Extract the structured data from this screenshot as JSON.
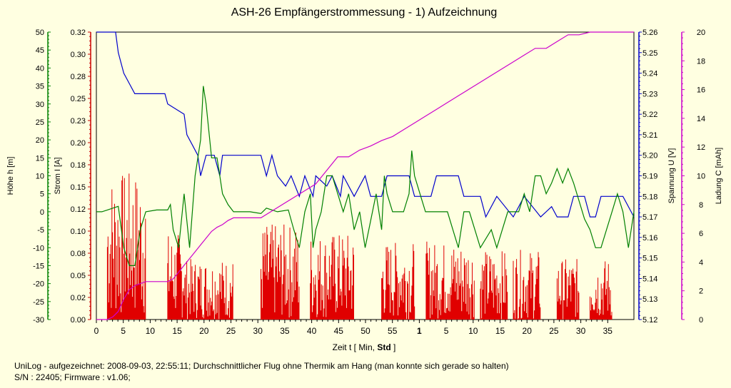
{
  "chart_data": {
    "type": "line",
    "title": "ASH-26 Empfängerstrommessung - 1) Aufzeichnung",
    "xlabel": {
      "prefix": "Zeit  t  [ Min, ",
      "bold": "Std",
      "suffix": " ]"
    },
    "x_ticks": [
      "0",
      "5",
      "10",
      "15",
      "20",
      "25",
      "30",
      "35",
      "40",
      "45",
      "50",
      "55",
      "1",
      "5",
      "10",
      "15",
      "20",
      "25",
      "30",
      "35"
    ],
    "x_tick_bold": "1",
    "xlim": [
      0,
      98
    ],
    "axes": {
      "hoehe": {
        "label": "Höhe  h  [m]",
        "ticks": [
          "50",
          "45",
          "40",
          "35",
          "30",
          "25",
          "20",
          "15",
          "10",
          "5",
          "0",
          "-5",
          "-10",
          "-15",
          "-20",
          "-25",
          "-30"
        ],
        "range": [
          -30,
          50
        ],
        "color": "#008000"
      },
      "strom": {
        "label": "Strom  I  [A]",
        "ticks": [
          "0.32",
          "0.30",
          "0.28",
          "0.25",
          "0.23",
          "0.20",
          "0.18",
          "0.15",
          "0.12",
          "0.10",
          "0.08",
          "0.05",
          "0.02",
          "0.00"
        ],
        "range": [
          0,
          0.33
        ],
        "color": "#cc0000"
      },
      "spannung": {
        "label": "Spannung  U  [V]",
        "ticks": [
          "5.26",
          "5.25",
          "5.24",
          "5.23",
          "5.22",
          "5.21",
          "5.20",
          "5.19",
          "5.18",
          "5.17",
          "5.16",
          "5.15",
          "5.14",
          "5.13",
          "5.12"
        ],
        "range": [
          5.12,
          5.26
        ],
        "color": "#0000cc"
      },
      "ladung": {
        "label": "Ladung  C  [mAh]",
        "ticks": [
          "20",
          "18",
          "16",
          "14",
          "12",
          "10",
          "8",
          "6",
          "4",
          "2",
          "0"
        ],
        "range": [
          0,
          21.2
        ],
        "color": "#cc00cc"
      }
    },
    "series": [
      {
        "axis": "spannung",
        "color": "#0000cc",
        "points": [
          [
            0,
            5.26
          ],
          [
            3.5,
            5.26
          ],
          [
            4,
            5.25
          ],
          [
            5,
            5.24
          ],
          [
            6,
            5.235
          ],
          [
            7,
            5.23
          ],
          [
            11,
            5.23
          ],
          [
            12.5,
            5.23
          ],
          [
            13,
            5.225
          ],
          [
            16,
            5.22
          ],
          [
            16.5,
            5.21
          ],
          [
            17.5,
            5.205
          ],
          [
            18.5,
            5.2
          ],
          [
            19,
            5.19
          ],
          [
            20,
            5.2
          ],
          [
            21.5,
            5.2
          ],
          [
            22.5,
            5.19
          ],
          [
            23,
            5.2
          ],
          [
            24,
            5.2
          ],
          [
            30,
            5.2
          ],
          [
            31,
            5.19
          ],
          [
            32,
            5.2
          ],
          [
            33,
            5.19
          ],
          [
            34.5,
            5.185
          ],
          [
            35.5,
            5.19
          ],
          [
            37,
            5.18
          ],
          [
            38,
            5.19
          ],
          [
            39.5,
            5.18
          ],
          [
            40,
            5.19
          ],
          [
            42,
            5.185
          ],
          [
            43,
            5.19
          ],
          [
            44.5,
            5.18
          ],
          [
            45,
            5.19
          ],
          [
            47,
            5.18
          ],
          [
            49,
            5.19
          ],
          [
            50,
            5.18
          ],
          [
            52,
            5.18
          ],
          [
            53,
            5.19
          ],
          [
            57,
            5.19
          ],
          [
            58,
            5.18
          ],
          [
            61,
            5.18
          ],
          [
            62,
            5.19
          ],
          [
            66,
            5.19
          ],
          [
            67,
            5.18
          ],
          [
            70,
            5.18
          ],
          [
            71,
            5.17
          ],
          [
            73,
            5.18
          ],
          [
            76,
            5.17
          ],
          [
            78,
            5.18
          ],
          [
            81,
            5.17
          ],
          [
            83,
            5.175
          ],
          [
            84,
            5.17
          ],
          [
            86,
            5.17
          ],
          [
            87,
            5.18
          ],
          [
            89,
            5.18
          ],
          [
            90,
            5.17
          ],
          [
            91,
            5.17
          ],
          [
            92,
            5.18
          ],
          [
            96,
            5.18
          ],
          [
            98,
            5.17
          ]
        ]
      },
      {
        "axis": "hoehe",
        "color": "#008000",
        "points": [
          [
            0,
            0
          ],
          [
            1,
            0
          ],
          [
            2,
            0.5
          ],
          [
            3,
            1
          ],
          [
            4,
            1.5
          ],
          [
            5,
            -10
          ],
          [
            6,
            -15
          ],
          [
            7,
            -15
          ],
          [
            8,
            -5
          ],
          [
            9,
            0
          ],
          [
            11,
            0.5
          ],
          [
            13,
            0.5
          ],
          [
            13.5,
            2
          ],
          [
            14,
            -5
          ],
          [
            15,
            -10
          ],
          [
            16,
            5
          ],
          [
            17,
            -10
          ],
          [
            18,
            10
          ],
          [
            19,
            20
          ],
          [
            19.5,
            35
          ],
          [
            20,
            30
          ],
          [
            21,
            15
          ],
          [
            22,
            15
          ],
          [
            22.5,
            10
          ],
          [
            23,
            5
          ],
          [
            24,
            2
          ],
          [
            25,
            0
          ],
          [
            28,
            0
          ],
          [
            30,
            -0.5
          ],
          [
            31,
            1
          ],
          [
            33,
            0
          ],
          [
            35,
            0.5
          ],
          [
            36,
            -5
          ],
          [
            37,
            -10
          ],
          [
            38,
            0
          ],
          [
            39,
            5
          ],
          [
            39.5,
            -10
          ],
          [
            40,
            -5
          ],
          [
            41,
            0
          ],
          [
            42,
            10
          ],
          [
            43,
            10
          ],
          [
            44,
            5
          ],
          [
            45,
            0
          ],
          [
            46,
            5
          ],
          [
            47,
            -5
          ],
          [
            48,
            0
          ],
          [
            49,
            -10
          ],
          [
            51,
            5
          ],
          [
            52,
            -5
          ],
          [
            52.5,
            10
          ],
          [
            53,
            5
          ],
          [
            54,
            0
          ],
          [
            55,
            0
          ],
          [
            56,
            0
          ],
          [
            57,
            5
          ],
          [
            57.5,
            17
          ],
          [
            58,
            10
          ],
          [
            59,
            5
          ],
          [
            60,
            0
          ],
          [
            62,
            0
          ],
          [
            63,
            0
          ],
          [
            64,
            0
          ],
          [
            65,
            -5
          ],
          [
            66,
            -10
          ],
          [
            67,
            0
          ],
          [
            68,
            0
          ],
          [
            69,
            -5
          ],
          [
            70,
            -10
          ],
          [
            72,
            -5
          ],
          [
            73,
            -10
          ],
          [
            74,
            -5
          ],
          [
            75,
            0
          ],
          [
            77,
            0
          ],
          [
            78,
            5
          ],
          [
            79,
            0
          ],
          [
            80,
            10
          ],
          [
            81,
            10
          ],
          [
            82,
            5
          ],
          [
            83,
            8
          ],
          [
            84,
            12
          ],
          [
            85,
            8
          ],
          [
            86,
            12
          ],
          [
            87,
            8
          ],
          [
            88,
            3
          ],
          [
            89,
            -2
          ],
          [
            90,
            -5
          ],
          [
            91,
            -10
          ],
          [
            92,
            -10
          ],
          [
            93,
            -5
          ],
          [
            94,
            0
          ],
          [
            95,
            5
          ],
          [
            96,
            0
          ],
          [
            97,
            -10
          ],
          [
            98,
            0
          ]
        ]
      },
      {
        "axis": "ladung",
        "color": "#cc00cc",
        "points": [
          [
            0,
            0
          ],
          [
            2,
            0
          ],
          [
            3,
            0.2
          ],
          [
            4,
            0.6
          ],
          [
            5,
            1.5
          ],
          [
            6,
            2.2
          ],
          [
            7,
            2.5
          ],
          [
            9,
            2.8
          ],
          [
            11,
            2.8
          ],
          [
            13,
            2.8
          ],
          [
            14,
            3
          ],
          [
            15,
            3.5
          ],
          [
            16,
            4
          ],
          [
            17,
            4.5
          ],
          [
            18,
            5
          ],
          [
            19,
            5.5
          ],
          [
            20,
            6
          ],
          [
            21,
            6.5
          ],
          [
            22,
            6.8
          ],
          [
            23,
            7
          ],
          [
            24,
            7.3
          ],
          [
            25,
            7.5
          ],
          [
            26,
            7.5
          ],
          [
            28,
            7.5
          ],
          [
            30,
            7.5
          ],
          [
            32,
            8
          ],
          [
            34,
            8.5
          ],
          [
            36,
            9
          ],
          [
            38,
            9.5
          ],
          [
            40,
            10
          ],
          [
            42,
            11
          ],
          [
            44,
            12
          ],
          [
            46,
            12
          ],
          [
            48,
            12.5
          ],
          [
            50,
            12.8
          ],
          [
            52,
            13.2
          ],
          [
            54,
            13.5
          ],
          [
            56,
            14
          ],
          [
            58,
            14.5
          ],
          [
            60,
            15
          ],
          [
            62,
            15.5
          ],
          [
            64,
            16
          ],
          [
            66,
            16.5
          ],
          [
            68,
            17
          ],
          [
            70,
            17.5
          ],
          [
            72,
            18
          ],
          [
            74,
            18.5
          ],
          [
            76,
            19
          ],
          [
            78,
            19.5
          ],
          [
            80,
            20
          ],
          [
            82,
            20
          ],
          [
            84,
            20.5
          ],
          [
            86,
            21
          ],
          [
            88,
            21
          ],
          [
            90,
            21.2
          ],
          [
            92,
            21.2
          ],
          [
            98,
            21.2
          ]
        ]
      }
    ],
    "current_bursts": [
      {
        "from": 2,
        "to": 9,
        "peak": 0.17
      },
      {
        "from": 13,
        "to": 16,
        "peak": 0.1
      },
      {
        "from": 16,
        "to": 25,
        "peak": 0.07
      },
      {
        "from": 30,
        "to": 37,
        "peak": 0.11
      },
      {
        "from": 39,
        "to": 47,
        "peak": 0.1
      },
      {
        "from": 52,
        "to": 58,
        "peak": 0.09
      },
      {
        "from": 60,
        "to": 69,
        "peak": 0.09
      },
      {
        "from": 70,
        "to": 75,
        "peak": 0.08
      },
      {
        "from": 76,
        "to": 81,
        "peak": 0.08
      },
      {
        "from": 84,
        "to": 88,
        "peak": 0.07
      },
      {
        "from": 90,
        "to": 94,
        "peak": 0.07
      }
    ]
  },
  "footer": {
    "line1": "UniLog - aufgezeichnet: 2008-09-03, 22:55:11; Durchschnittlicher Flug ohne Thermik am Hang (man konnte sich gerade so halten)",
    "line2": "S/N : 22405; Firmware : v1.06;"
  }
}
